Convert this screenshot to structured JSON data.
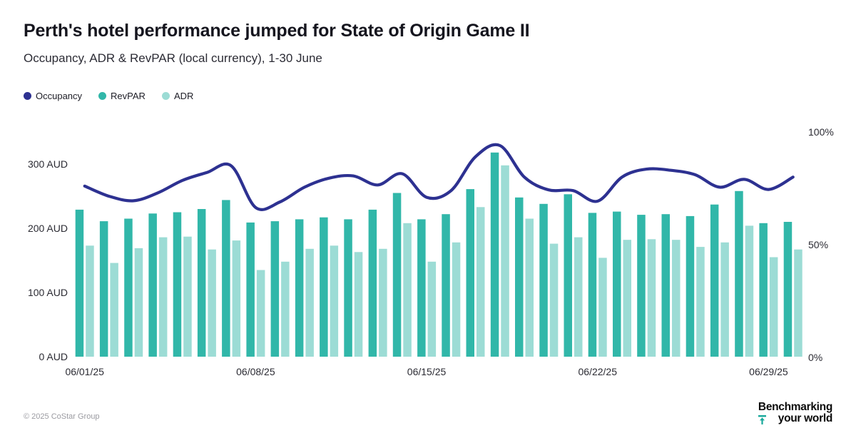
{
  "header": {
    "title": "Perth's hotel performance jumped for State of Origin Game II",
    "subtitle": "Occupancy, ADR & RevPAR (local currency), 1-30 June"
  },
  "legend": [
    {
      "label": "Occupancy",
      "color": "#2d3191"
    },
    {
      "label": "RevPAR",
      "color": "#31b7a9"
    },
    {
      "label": "ADR",
      "color": "#9cdcd5"
    }
  ],
  "chart_data": {
    "type": "combo",
    "title": "Perth's hotel performance jumped for State of Origin Game II",
    "subtitle": "Occupancy, ADR & RevPAR (local currency), 1-30 June",
    "num_days": 30,
    "x_tick_labels": [
      "06/01/25",
      "06/08/25",
      "06/15/25",
      "06/22/25",
      "06/29/25"
    ],
    "x_tick_day_indices": [
      0,
      7,
      14,
      21,
      28
    ],
    "series": [
      {
        "name": "Occupancy",
        "type": "line",
        "axis": "right",
        "unit": "%",
        "color": "#2d3191",
        "values": [
          76,
          71.5,
          69.5,
          73,
          78.5,
          82,
          85,
          66.5,
          69,
          75.5,
          79.5,
          80.5,
          76.5,
          81.5,
          71,
          74,
          89,
          94,
          80,
          74.3,
          74,
          69.3,
          80,
          83.5,
          83,
          81,
          75.5,
          79,
          74.5,
          80
        ]
      },
      {
        "name": "RevPAR",
        "type": "bar",
        "axis": "left",
        "unit": "AUD",
        "color": "#31b7a9",
        "values": [
          229,
          211,
          215,
          223,
          225,
          230,
          244,
          209,
          211,
          214,
          217,
          214,
          229,
          255,
          214,
          222,
          261,
          318,
          248,
          238,
          253,
          224,
          226,
          221,
          222,
          219,
          237,
          258,
          208,
          210
        ]
      },
      {
        "name": "ADR",
        "type": "bar",
        "axis": "left",
        "unit": "AUD",
        "color": "#9cdcd5",
        "values": [
          173,
          146,
          169,
          186,
          187,
          167,
          181,
          135,
          148,
          168,
          173,
          163,
          168,
          208,
          148,
          178,
          233,
          298,
          215,
          176,
          186,
          154,
          182,
          183,
          182,
          171,
          178,
          204,
          155,
          167
        ]
      }
    ],
    "left_axis": {
      "tick_labels": [
        "0 AUD",
        "100 AUD",
        "200 AUD",
        "300 AUD"
      ],
      "tick_values": [
        0,
        100,
        200,
        300
      ],
      "range": [
        0,
        350
      ]
    },
    "right_axis": {
      "tick_labels": [
        "0%",
        "50%",
        "100%"
      ],
      "tick_values": [
        0,
        50,
        100
      ],
      "range": [
        0,
        100
      ]
    },
    "grid": false,
    "legend_position": "top-left"
  },
  "footer": {
    "copyright": "© 2025 CoStar Group",
    "logo": {
      "line1": "Benchmarking",
      "line2": "your world",
      "icon": "up-arrow-to-bar-icon",
      "icon_color": "#18a89b"
    }
  }
}
